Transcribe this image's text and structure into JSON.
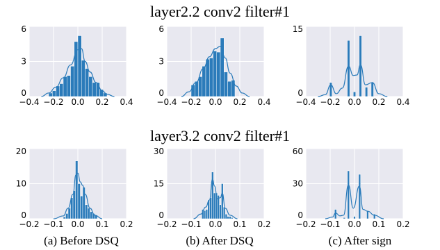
{
  "figure": {
    "row_titles": [
      "layer2.2 conv2 filter#1",
      "layer3.2 conv2 filter#1"
    ],
    "captions": [
      "(a)  Before DSQ",
      "(b)  After DSQ",
      "(c)  After sign"
    ]
  },
  "colors": {
    "bar": "#2b7bba",
    "kde": "#2b7bba",
    "panel_bg": "#e8e8f0",
    "grid": "#ffffff"
  },
  "chart_data": [
    {
      "type": "bar",
      "row": 0,
      "col": 0,
      "xlim": [
        -0.4,
        0.4
      ],
      "ylim": [
        0,
        6
      ],
      "xticks": [
        "-0.4",
        "-0.2",
        "0.0",
        "0.2",
        "0.4"
      ],
      "yticks": [
        "0",
        "3",
        "6"
      ],
      "bins": [
        [
          -0.24,
          -0.21,
          0.3
        ],
        [
          -0.21,
          -0.18,
          0.5
        ],
        [
          -0.18,
          -0.15,
          0.9
        ],
        [
          -0.15,
          -0.12,
          1.1
        ],
        [
          -0.12,
          -0.09,
          1.7
        ],
        [
          -0.09,
          -0.06,
          1.8
        ],
        [
          -0.06,
          -0.03,
          2.6
        ],
        [
          -0.03,
          0.0,
          4.7
        ],
        [
          0.0,
          0.03,
          5.2
        ],
        [
          0.03,
          0.06,
          3.1
        ],
        [
          0.06,
          0.09,
          2.4
        ],
        [
          0.09,
          0.12,
          1.7
        ],
        [
          0.12,
          0.15,
          1.2
        ],
        [
          0.15,
          0.18,
          1.2
        ],
        [
          0.18,
          0.21,
          0.6
        ],
        [
          0.21,
          0.24,
          0.3
        ]
      ],
      "kde": [
        [
          -0.3,
          0.0
        ],
        [
          -0.24,
          0.3
        ],
        [
          -0.18,
          0.8
        ],
        [
          -0.12,
          1.6
        ],
        [
          -0.06,
          2.7
        ],
        [
          0.0,
          4.0
        ],
        [
          0.03,
          4.1
        ],
        [
          0.06,
          3.0
        ],
        [
          0.1,
          2.1
        ],
        [
          0.15,
          1.2
        ],
        [
          0.2,
          0.5
        ],
        [
          0.24,
          0.2
        ],
        [
          0.3,
          0.0
        ]
      ]
    },
    {
      "type": "bar",
      "row": 0,
      "col": 1,
      "xlim": [
        -0.4,
        0.4
      ],
      "ylim": [
        0,
        6
      ],
      "xticks": [
        "-0.4",
        "-0.2",
        "0.0",
        "0.2",
        "0.4"
      ],
      "yticks": [
        "0",
        "3",
        "6"
      ],
      "bins": [
        [
          -0.2,
          -0.17,
          1.0
        ],
        [
          -0.17,
          -0.14,
          1.3
        ],
        [
          -0.14,
          -0.11,
          1.7
        ],
        [
          -0.11,
          -0.08,
          2.6
        ],
        [
          -0.08,
          -0.05,
          3.2
        ],
        [
          -0.05,
          -0.02,
          3.3
        ],
        [
          -0.02,
          0.01,
          3.9
        ],
        [
          0.01,
          0.04,
          3.8
        ],
        [
          0.04,
          0.07,
          5.0
        ],
        [
          0.07,
          0.1,
          2.1
        ],
        [
          0.1,
          0.13,
          1.3
        ],
        [
          0.13,
          0.16,
          1.4
        ]
      ],
      "kde": [
        [
          -0.28,
          0.0
        ],
        [
          -0.22,
          0.4
        ],
        [
          -0.16,
          1.2
        ],
        [
          -0.1,
          2.4
        ],
        [
          -0.05,
          3.4
        ],
        [
          0.0,
          4.1
        ],
        [
          0.04,
          4.3
        ],
        [
          0.08,
          3.3
        ],
        [
          0.12,
          2.0
        ],
        [
          0.17,
          0.9
        ],
        [
          0.22,
          0.3
        ],
        [
          0.28,
          0.0
        ]
      ]
    },
    {
      "type": "bar",
      "row": 0,
      "col": 2,
      "xlim": [
        -0.4,
        0.4
      ],
      "ylim": [
        0,
        15
      ],
      "xticks": [
        "-0.4",
        "-0.2",
        "0.0",
        "0.2",
        "0.4"
      ],
      "yticks": [
        "0",
        "15"
      ],
      "bins": [
        [
          -0.205,
          -0.185,
          3
        ],
        [
          -0.059,
          -0.039,
          12
        ],
        [
          -0.01,
          0.01,
          1
        ],
        [
          0.039,
          0.059,
          13
        ],
        [
          0.088,
          0.108,
          2
        ],
        [
          0.137,
          0.157,
          3
        ]
      ],
      "kde": [
        [
          -0.3,
          0.0
        ],
        [
          -0.24,
          0.4
        ],
        [
          -0.195,
          2.5
        ],
        [
          -0.15,
          0.6
        ],
        [
          -0.1,
          1.8
        ],
        [
          -0.049,
          6.5
        ],
        [
          -0.01,
          4.5
        ],
        [
          0.02,
          4.6
        ],
        [
          0.049,
          6.8
        ],
        [
          0.09,
          2.5
        ],
        [
          0.147,
          3.0
        ],
        [
          0.2,
          0.6
        ],
        [
          0.27,
          0.0
        ]
      ]
    },
    {
      "type": "bar",
      "row": 1,
      "col": 0,
      "xlim": [
        -0.2,
        0.2
      ],
      "ylim": [
        0,
        20
      ],
      "xticks": [
        "-0.2",
        "-0.1",
        "0.0",
        "0.1",
        "0.2"
      ],
      "yticks": [
        "0",
        "10",
        "20"
      ],
      "bins": [
        [
          -0.06,
          -0.05,
          0.5
        ],
        [
          -0.05,
          -0.04,
          1.5
        ],
        [
          -0.04,
          -0.03,
          3
        ],
        [
          -0.03,
          -0.02,
          6
        ],
        [
          -0.02,
          -0.01,
          8
        ],
        [
          -0.01,
          0.0,
          16.5
        ],
        [
          0.0,
          0.01,
          10
        ],
        [
          0.01,
          0.02,
          6.5
        ],
        [
          0.02,
          0.03,
          9
        ],
        [
          0.03,
          0.04,
          4
        ],
        [
          0.04,
          0.05,
          3
        ],
        [
          0.05,
          0.06,
          2
        ],
        [
          0.06,
          0.07,
          1.5
        ],
        [
          0.07,
          0.08,
          1
        ]
      ],
      "kde": [
        [
          -0.1,
          0.0
        ],
        [
          -0.06,
          0.8
        ],
        [
          -0.04,
          3.0
        ],
        [
          -0.02,
          7.0
        ],
        [
          -0.008,
          12.5
        ],
        [
          0.0,
          13.0
        ],
        [
          0.01,
          10.5
        ],
        [
          0.02,
          9.5
        ],
        [
          0.03,
          7.0
        ],
        [
          0.05,
          3.0
        ],
        [
          0.07,
          1.0
        ],
        [
          0.1,
          0.0
        ]
      ]
    },
    {
      "type": "bar",
      "row": 1,
      "col": 1,
      "xlim": [
        -0.2,
        0.2
      ],
      "ylim": [
        0,
        30
      ],
      "xticks": [
        "-0.2",
        "-0.1",
        "0.0",
        "0.1",
        "0.2"
      ],
      "yticks": [
        "0",
        "15",
        "30"
      ],
      "bins": [
        [
          -0.056,
          -0.048,
          4
        ],
        [
          -0.048,
          -0.04,
          3.5
        ],
        [
          -0.04,
          -0.032,
          4
        ],
        [
          -0.032,
          -0.024,
          8
        ],
        [
          -0.024,
          -0.016,
          9
        ],
        [
          -0.016,
          -0.008,
          20
        ],
        [
          -0.008,
          0.0,
          11
        ],
        [
          0.0,
          0.008,
          11
        ],
        [
          0.008,
          0.016,
          10
        ],
        [
          0.016,
          0.024,
          6
        ],
        [
          0.024,
          0.032,
          15
        ],
        [
          0.032,
          0.04,
          5
        ],
        [
          0.04,
          0.048,
          2
        ],
        [
          0.048,
          0.056,
          1
        ],
        [
          0.056,
          0.064,
          1
        ],
        [
          0.064,
          0.072,
          0.5
        ]
      ],
      "kde": [
        [
          -0.09,
          0.0
        ],
        [
          -0.06,
          2.0
        ],
        [
          -0.04,
          5.0
        ],
        [
          -0.025,
          8.0
        ],
        [
          -0.012,
          17.0
        ],
        [
          -0.004,
          14.0
        ],
        [
          0.008,
          8.5
        ],
        [
          0.02,
          9.0
        ],
        [
          0.028,
          11.0
        ],
        [
          0.04,
          4.5
        ],
        [
          0.06,
          1.5
        ],
        [
          0.09,
          0.0
        ]
      ]
    },
    {
      "type": "bar",
      "row": 1,
      "col": 2,
      "xlim": [
        -0.2,
        0.2
      ],
      "ylim": [
        0,
        60
      ],
      "xticks": [
        "-0.2",
        "-0.1",
        "0.0",
        "0.1",
        "0.2"
      ],
      "yticks": [
        "0",
        "30",
        "60"
      ],
      "bins": [
        [
          -0.082,
          -0.074,
          8
        ],
        [
          -0.046,
          -0.038,
          1
        ],
        [
          -0.029,
          -0.021,
          41
        ],
        [
          -0.004,
          0.004,
          2
        ],
        [
          0.017,
          0.025,
          38
        ],
        [
          0.05,
          0.058,
          7
        ],
        [
          0.078,
          0.086,
          4
        ]
      ],
      "kde": [
        [
          -0.12,
          0.0
        ],
        [
          -0.09,
          1.5
        ],
        [
          -0.078,
          5.0
        ],
        [
          -0.06,
          2.5
        ],
        [
          -0.045,
          3.0
        ],
        [
          -0.025,
          29.0
        ],
        [
          -0.005,
          9.0
        ],
        [
          0.02,
          28.0
        ],
        [
          0.035,
          8.0
        ],
        [
          0.054,
          6.5
        ],
        [
          0.082,
          3.0
        ],
        [
          0.12,
          0.0
        ]
      ]
    }
  ]
}
